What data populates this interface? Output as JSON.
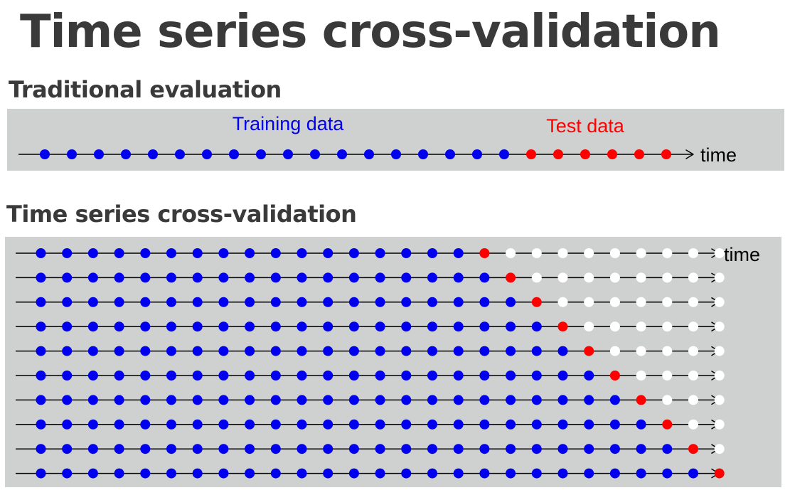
{
  "title": "Time series cross-validation",
  "traditional": {
    "heading": "Traditional evaluation",
    "training_label": "Training data",
    "test_label": "Test data",
    "axis_label": "time",
    "n_points": 24,
    "n_training": 18
  },
  "cross_validation": {
    "heading": "Time series cross-validation",
    "axis_label": "time",
    "n_points": 27,
    "rows": [
      {
        "training": 17,
        "test_index": 17
      },
      {
        "training": 18,
        "test_index": 18
      },
      {
        "training": 19,
        "test_index": 19
      },
      {
        "training": 20,
        "test_index": 20
      },
      {
        "training": 21,
        "test_index": 21
      },
      {
        "training": 22,
        "test_index": 22
      },
      {
        "training": 23,
        "test_index": 23
      },
      {
        "training": 24,
        "test_index": 24
      },
      {
        "training": 25,
        "test_index": 25
      },
      {
        "training": 26,
        "test_index": 26
      }
    ]
  },
  "colors": {
    "training": "#0000ee",
    "test": "#ff0000",
    "unused": "#ffffff",
    "panel": "#cfd1d0",
    "heading": "#3a3a3a"
  }
}
